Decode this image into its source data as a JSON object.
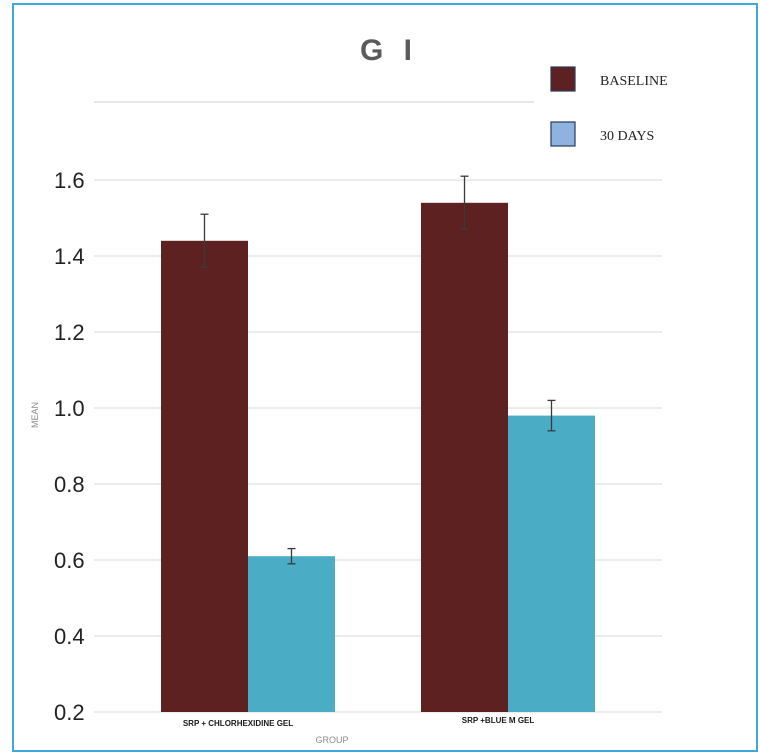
{
  "chart_data": {
    "type": "bar",
    "title": "G I",
    "xlabel": "GROUP",
    "ylabel": "MEAN",
    "categories": [
      "SRP + CHLORHEXIDINE GEL",
      "SRP +BLUE M GEL"
    ],
    "series": [
      {
        "name": "BASELINE",
        "values": [
          1.44,
          1.54
        ],
        "errors": [
          0.07,
          0.07
        ],
        "color": "#5e2121"
      },
      {
        "name": "30 DAYS",
        "values": [
          0.61,
          0.98
        ],
        "errors": [
          0.02,
          0.04
        ],
        "color": "#4bacc6"
      }
    ],
    "yticks": [
      "0.2",
      "0.4",
      "0.6",
      "0.8",
      "1.0",
      "1.2",
      "1.4",
      "1.6"
    ],
    "ylim": [
      0.2,
      1.6
    ],
    "grid": true,
    "legend_position": "top-right",
    "legend_swatch_colors": [
      "#5e2121",
      "#8fb3df"
    ]
  }
}
